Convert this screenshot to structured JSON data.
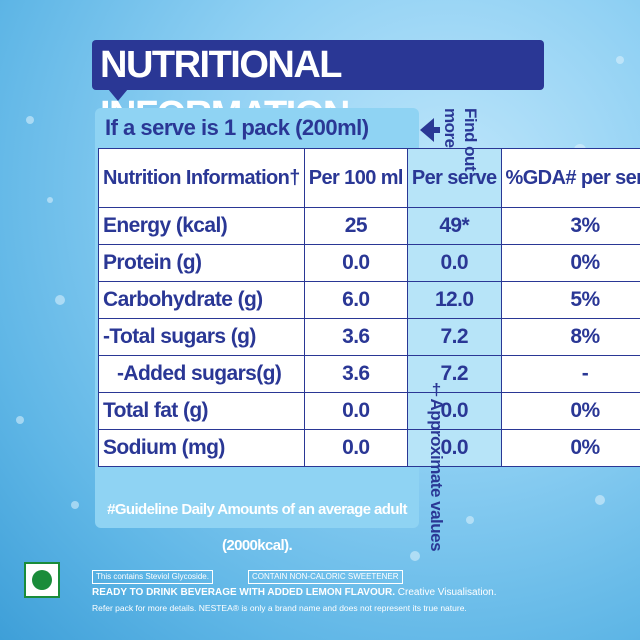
{
  "header": {
    "title": "NUTRITIONAL INFORMATION"
  },
  "serve": {
    "text": "If a serve is 1 pack (200ml)"
  },
  "table": {
    "headers": [
      "Nutrition Information†",
      "Per 100 ml",
      "Per serve",
      "%GDA# per serve"
    ],
    "rows": [
      {
        "label": "Energy (kcal)",
        "per100": "25",
        "serve": "49*",
        "gda": "3%"
      },
      {
        "label": "Protein (g)",
        "per100": "0.0",
        "serve": "0.0",
        "gda": "0%"
      },
      {
        "label": "Carbohydrate (g)",
        "per100": "6.0",
        "serve": "12.0",
        "gda": "5%"
      },
      {
        "label": "-Total sugars (g)",
        "per100": "3.6",
        "serve": "7.2",
        "gda": "8%"
      },
      {
        "label": "-Added sugars(g)",
        "per100": "3.6",
        "serve": "7.2",
        "gda": "-"
      },
      {
        "label": "Total fat (g)",
        "per100": "0.0",
        "serve": "0.0",
        "gda": "0%"
      },
      {
        "label": "Sodium (mg)",
        "per100": "0.0",
        "serve": "0.0",
        "gda": "0%"
      }
    ],
    "footnote": "#Guideline Daily Amounts of an average adult (2000kcal)."
  },
  "side": {
    "find_more": "Find out more",
    "approx": "†Approximate values"
  },
  "footer": {
    "tag1": "This contains Steviol Glycoside.",
    "tag2": "CONTAIN NON-CALORIC SWEETENER",
    "line1_bold": "READY TO DRINK BEVERAGE WITH ADDED LEMON FLAVOUR.",
    "line1_rest": " Creative Visualisation.",
    "line2": "Refer pack for more details. NESTEA® is only a brand name and does not represent its true nature."
  },
  "icons": {
    "veg": "veg-mark-icon",
    "arrow": "arrow-left-icon"
  },
  "colors": {
    "navy": "#2a3795",
    "green": "#1a8c3a"
  }
}
